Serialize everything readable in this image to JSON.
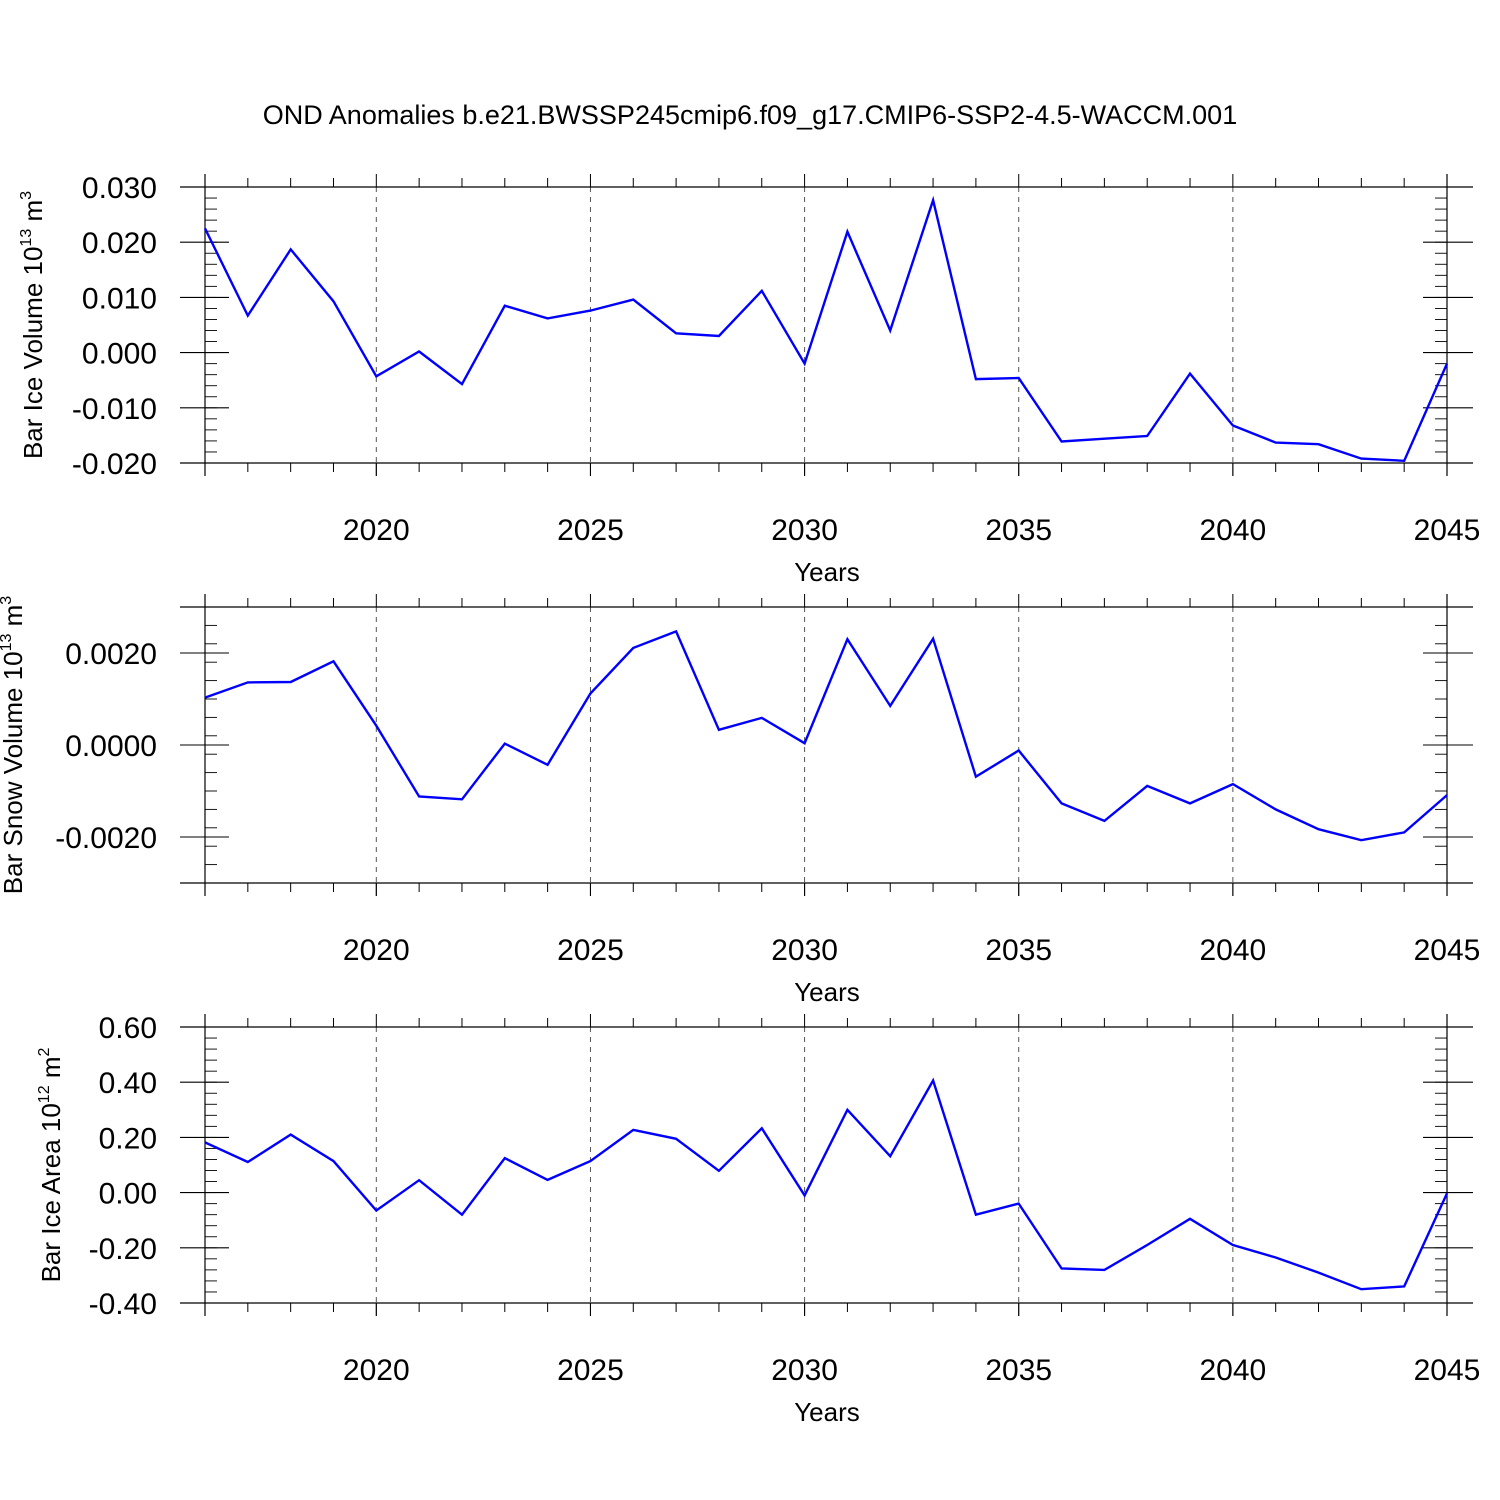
{
  "title": "OND Anomalies b.e21.BWSSP245cmip6.f09_g17.CMIP6-SSP2-4.5-WACCM.001",
  "colors": {
    "line": "#0000ff",
    "axis": "#000000",
    "grid": "#555555"
  },
  "chart_data": [
    {
      "type": "line",
      "ylabel_text": "Bar Ice Volume 10",
      "ylabel_exp": "13",
      "ylabel_unit": "m",
      "ylabel_unit_exp": "3",
      "xlabel": "Years",
      "xlim": [
        2016,
        2045
      ],
      "ylim": [
        -0.02,
        0.03
      ],
      "x_ticks": [
        2020,
        2025,
        2030,
        2035,
        2040,
        2045
      ],
      "y_ticks": [
        "-0.020",
        "-0.010",
        "0.000",
        "0.010",
        "0.020",
        "0.030"
      ],
      "grid": "vertical dashed at major x ticks",
      "x": [
        2016,
        2017,
        2018,
        2019,
        2020,
        2021,
        2022,
        2023,
        2024,
        2025,
        2026,
        2027,
        2028,
        2029,
        2030,
        2031,
        2032,
        2033,
        2034,
        2035,
        2036,
        2037,
        2038,
        2039,
        2040,
        2041,
        2042,
        2043,
        2044,
        2045
      ],
      "values": [
        0.0225,
        0.0067,
        0.0187,
        0.0093,
        -0.0043,
        0.0002,
        -0.0057,
        0.0085,
        0.0062,
        0.0076,
        0.0096,
        0.0035,
        0.003,
        0.0112,
        -0.002,
        0.0219,
        0.004,
        0.0276,
        -0.0048,
        -0.0046,
        -0.0161,
        -0.0156,
        -0.0151,
        -0.0038,
        -0.0132,
        -0.0163,
        -0.0166,
        -0.0192,
        -0.0196,
        -0.002
      ]
    },
    {
      "type": "line",
      "ylabel_text": "Bar Snow Volume 10",
      "ylabel_exp": "13",
      "ylabel_unit": "m",
      "ylabel_unit_exp": "3",
      "xlabel": "Years",
      "xlim": [
        2016,
        2045
      ],
      "ylim": [
        -0.003,
        0.003
      ],
      "x_ticks": [
        2020,
        2025,
        2030,
        2035,
        2040,
        2045
      ],
      "y_ticks": [
        "-0.0020",
        "0.0000",
        "0.0020"
      ],
      "grid": "vertical dashed at major x ticks",
      "x": [
        2016,
        2017,
        2018,
        2019,
        2020,
        2021,
        2022,
        2023,
        2024,
        2025,
        2026,
        2027,
        2028,
        2029,
        2030,
        2031,
        2032,
        2033,
        2034,
        2035,
        2036,
        2037,
        2038,
        2039,
        2040,
        2041,
        2042,
        2043,
        2044,
        2045
      ],
      "values": [
        0.00103,
        0.00136,
        0.00137,
        0.00182,
        0.00042,
        -0.00112,
        -0.00118,
        3e-05,
        -0.00043,
        0.00112,
        0.00211,
        0.00247,
        0.00033,
        0.00059,
        4e-05,
        0.0023,
        0.00085,
        0.00231,
        -0.00069,
        -0.00012,
        -0.00127,
        -0.00165,
        -0.00089,
        -0.00127,
        -0.00085,
        -0.0014,
        -0.00183,
        -0.00207,
        -0.0019,
        -0.00109
      ]
    },
    {
      "type": "line",
      "ylabel_text": "Bar Ice Area 10",
      "ylabel_exp": "12",
      "ylabel_unit": "m",
      "ylabel_unit_exp": "2",
      "xlabel": "Years",
      "xlim": [
        2016,
        2045
      ],
      "ylim": [
        -0.4,
        0.6
      ],
      "x_ticks": [
        2020,
        2025,
        2030,
        2035,
        2040,
        2045
      ],
      "y_ticks": [
        "-0.40",
        "-0.20",
        "0.00",
        "0.20",
        "0.40",
        "0.60"
      ],
      "grid": "vertical dashed at major x ticks",
      "x": [
        2016,
        2017,
        2018,
        2019,
        2020,
        2021,
        2022,
        2023,
        2024,
        2025,
        2026,
        2027,
        2028,
        2029,
        2030,
        2031,
        2032,
        2033,
        2034,
        2035,
        2036,
        2037,
        2038,
        2039,
        2040,
        2041,
        2042,
        2043,
        2044,
        2045
      ],
      "values": [
        0.182,
        0.111,
        0.21,
        0.114,
        -0.065,
        0.045,
        -0.08,
        0.125,
        0.046,
        0.114,
        0.227,
        0.195,
        0.079,
        0.233,
        -0.01,
        0.3,
        0.132,
        0.406,
        -0.08,
        -0.04,
        -0.275,
        -0.28,
        -0.19,
        -0.095,
        -0.19,
        -0.235,
        -0.29,
        -0.35,
        -0.34,
        -0.003
      ]
    }
  ]
}
